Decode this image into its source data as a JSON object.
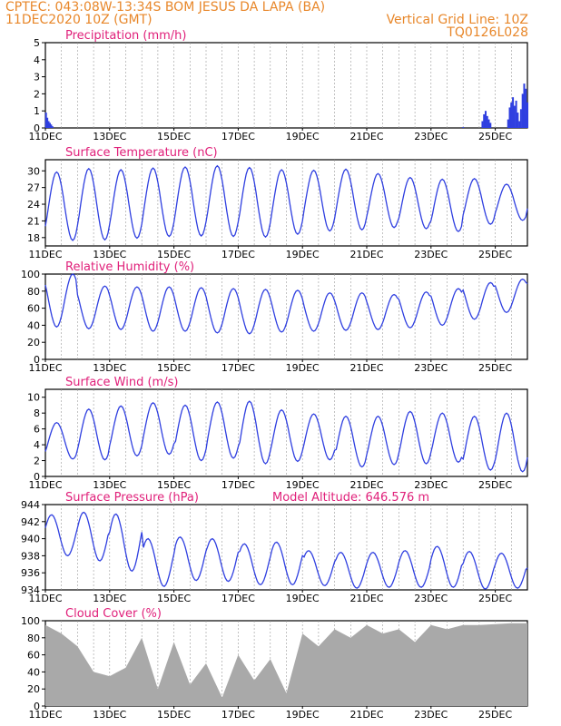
{
  "header": {
    "line1": "CPTEC:   043:08W-13:34S   BOM JESUS DA LAPA (BA)",
    "line2": "11DEC2020 10Z (GMT)",
    "grid_note": "Vertical Grid Line: 10Z",
    "code": "TQ0126L028"
  },
  "colors": {
    "header": "#e8872a",
    "title": "#e0207a",
    "line": "#2f3fe0",
    "wind": "#000000",
    "cloud": "#a9a9a9",
    "precip": "#2f3fe0"
  },
  "chart_data": [
    {
      "id": "precip",
      "type": "bar",
      "title": "Precipitation (mm/h)",
      "ylim": [
        0,
        5
      ],
      "yticks": [
        "0",
        "1",
        "2",
        "3",
        "4",
        "5"
      ],
      "xticks": [
        "11DEC",
        "13DEC",
        "15DEC",
        "17DEC",
        "19DEC",
        "21DEC",
        "23DEC",
        "25DEC"
      ],
      "x_days_range": [
        0,
        15
      ],
      "series": [
        {
          "x": [
            0.02,
            0.06,
            0.1,
            0.14,
            0.18,
            0.22,
            13.0,
            13.6,
            13.65,
            13.7,
            13.75,
            13.8,
            13.85,
            14.4,
            14.45,
            14.5,
            14.55,
            14.6,
            14.65,
            14.7,
            14.75,
            14.8,
            14.85,
            14.9,
            14.95,
            15.0,
            14.5,
            14.55,
            14.9,
            14.95
          ],
          "y": [
            0.9,
            0.6,
            0.4,
            0.3,
            0.2,
            0.1,
            0.05,
            0.4,
            0.8,
            1.0,
            0.7,
            0.5,
            0.3,
            0.5,
            1.2,
            1.5,
            1.8,
            1.3,
            1.6,
            0.9,
            0.4,
            1.1,
            2.0,
            2.6,
            2.3,
            1.5,
            1.4,
            1.1,
            0.8,
            0.5
          ]
        }
      ]
    },
    {
      "id": "temperature",
      "type": "line",
      "title": "Surface Temperature (nC)",
      "ylim": [
        16.5,
        32
      ],
      "yticks": [
        "18",
        "21",
        "24",
        "27",
        "30"
      ],
      "ytick_values": [
        18,
        21,
        24,
        27,
        30
      ],
      "xticks": [
        "11DEC",
        "13DEC",
        "15DEC",
        "17DEC",
        "19DEC",
        "21DEC",
        "23DEC",
        "25DEC"
      ],
      "daily_max": [
        29.8,
        30.4,
        30.2,
        30.5,
        30.7,
        30.9,
        30.6,
        30.2,
        30.1,
        30.3,
        29.5,
        28.8,
        28.5,
        28.6,
        27.6,
        26.8
      ],
      "daily_min": [
        17.5,
        17.6,
        17.9,
        18.2,
        18.3,
        18.2,
        18.1,
        18.6,
        19.2,
        19.4,
        19.8,
        19.6,
        19.1,
        20.4,
        21.1,
        22.3
      ]
    },
    {
      "id": "humidity",
      "type": "line",
      "title": "Relative Humidity (%)",
      "ylim": [
        0,
        100
      ],
      "yticks": [
        "0",
        "20",
        "40",
        "60",
        "80",
        "100"
      ],
      "ytick_values": [
        0,
        20,
        40,
        60,
        80,
        100
      ],
      "xticks": [
        "11DEC",
        "13DEC",
        "15DEC",
        "17DEC",
        "19DEC",
        "21DEC",
        "23DEC",
        "25DEC"
      ],
      "daily_max": [
        100,
        86,
        85,
        85,
        84,
        83,
        82,
        81,
        78,
        78,
        76,
        79,
        83,
        90,
        94,
        96
      ],
      "daily_min": [
        38,
        36,
        35,
        33,
        33,
        31,
        30,
        32,
        33,
        34,
        35,
        37,
        40,
        47,
        55,
        60
      ]
    },
    {
      "id": "wind",
      "type": "line",
      "title": "Surface Wind (m/s)",
      "ylim": [
        0,
        11
      ],
      "yticks": [
        "0",
        "2",
        "4",
        "6",
        "8",
        "10"
      ],
      "ytick_values": [
        0,
        2,
        4,
        6,
        8,
        10
      ],
      "xticks": [
        "11DEC",
        "13DEC",
        "15DEC",
        "17DEC",
        "19DEC",
        "21DEC",
        "23DEC",
        "25DEC"
      ],
      "daily_max": [
        6.8,
        8.5,
        8.9,
        9.3,
        9.0,
        9.4,
        9.5,
        8.4,
        7.9,
        7.6,
        7.6,
        8.2,
        8.0,
        7.6,
        8.0,
        7.8
      ],
      "daily_min": [
        2.2,
        2.1,
        2.6,
        2.8,
        2.0,
        2.3,
        1.6,
        1.9,
        2.1,
        1.2,
        1.5,
        1.6,
        1.8,
        0.8,
        0.6,
        1.0
      ]
    },
    {
      "id": "pressure",
      "type": "line",
      "title": "Surface Pressure (hPa)",
      "annotation": "Model Altitude: 646.576 m",
      "ylim": [
        934,
        944
      ],
      "yticks": [
        "934",
        "936",
        "938",
        "940",
        "942",
        "944"
      ],
      "ytick_values": [
        934,
        936,
        938,
        940,
        942,
        944
      ],
      "xticks": [
        "11DEC",
        "13DEC",
        "15DEC",
        "17DEC",
        "19DEC",
        "21DEC",
        "23DEC",
        "25DEC"
      ],
      "daily_max": [
        942.8,
        943.1,
        942.9,
        940.0,
        940.2,
        940.0,
        939.4,
        939.6,
        938.6,
        938.4,
        938.4,
        938.6,
        939.1,
        938.5,
        938.3,
        937.8
      ],
      "daily_min": [
        938.0,
        937.4,
        936.2,
        934.4,
        935.1,
        935.0,
        934.6,
        934.6,
        934.5,
        934.2,
        934.3,
        934.3,
        934.3,
        934.1,
        934.2,
        934.0
      ]
    },
    {
      "id": "cloud",
      "type": "area",
      "title": "Cloud Cover (%)",
      "ylim": [
        0,
        100
      ],
      "yticks": [
        "0",
        "20",
        "40",
        "60",
        "80",
        "100"
      ],
      "ytick_values": [
        0,
        20,
        40,
        60,
        80,
        100
      ],
      "xticks": [
        "11DEC",
        "13DEC",
        "15DEC",
        "17DEC",
        "19DEC",
        "21DEC",
        "23DEC",
        "25DEC"
      ],
      "x": [
        0,
        0.5,
        1,
        1.5,
        2,
        2.5,
        3,
        3.5,
        4,
        4.5,
        5,
        5.5,
        6,
        6.5,
        7,
        7.5,
        8,
        8.5,
        9,
        9.5,
        10,
        10.5,
        11,
        11.5,
        12,
        12.5,
        13,
        13.5,
        14,
        14.5,
        15
      ],
      "values": [
        95,
        85,
        70,
        40,
        35,
        45,
        80,
        20,
        75,
        25,
        50,
        10,
        60,
        30,
        55,
        15,
        85,
        70,
        90,
        80,
        95,
        85,
        90,
        75,
        95,
        90,
        95,
        95,
        96,
        97,
        97
      ]
    }
  ]
}
